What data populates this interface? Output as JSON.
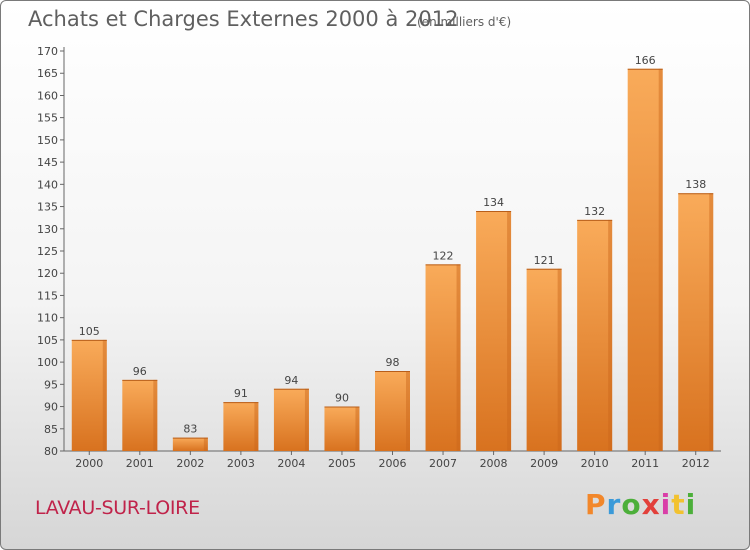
{
  "header": {
    "title": "Achats et Charges Externes 2000 à 2012",
    "subtitle": "(en milliers d'€)"
  },
  "footer": {
    "commune": "LAVAU-SUR-LOIRE",
    "brand": {
      "text": "Proxiti",
      "letter_colors": [
        "#f2872a",
        "#3a9ad9",
        "#4caf3a",
        "#e2403b",
        "#d93fa8",
        "#f2c230",
        "#4caf3a"
      ]
    }
  },
  "colors": {
    "bar": "#f09a45",
    "bar_dark": "#d4691b",
    "bar_light": "#f9b56c",
    "accent": "#c0234a"
  },
  "chart_data": {
    "type": "bar",
    "title": "Achats et Charges Externes 2000 à 2012",
    "subtitle": "(en milliers d'€)",
    "categories": [
      "2000",
      "2001",
      "2002",
      "2003",
      "2004",
      "2005",
      "2006",
      "2007",
      "2008",
      "2009",
      "2010",
      "2011",
      "2012"
    ],
    "values": [
      105,
      96,
      83,
      91,
      94,
      90,
      98,
      122,
      134,
      121,
      132,
      166,
      138
    ],
    "ylim": [
      80,
      170
    ],
    "yticks": [
      80,
      85,
      90,
      95,
      100,
      105,
      110,
      115,
      120,
      125,
      130,
      135,
      140,
      145,
      150,
      155,
      160,
      165,
      170
    ],
    "grid": false,
    "data_labels": true
  }
}
